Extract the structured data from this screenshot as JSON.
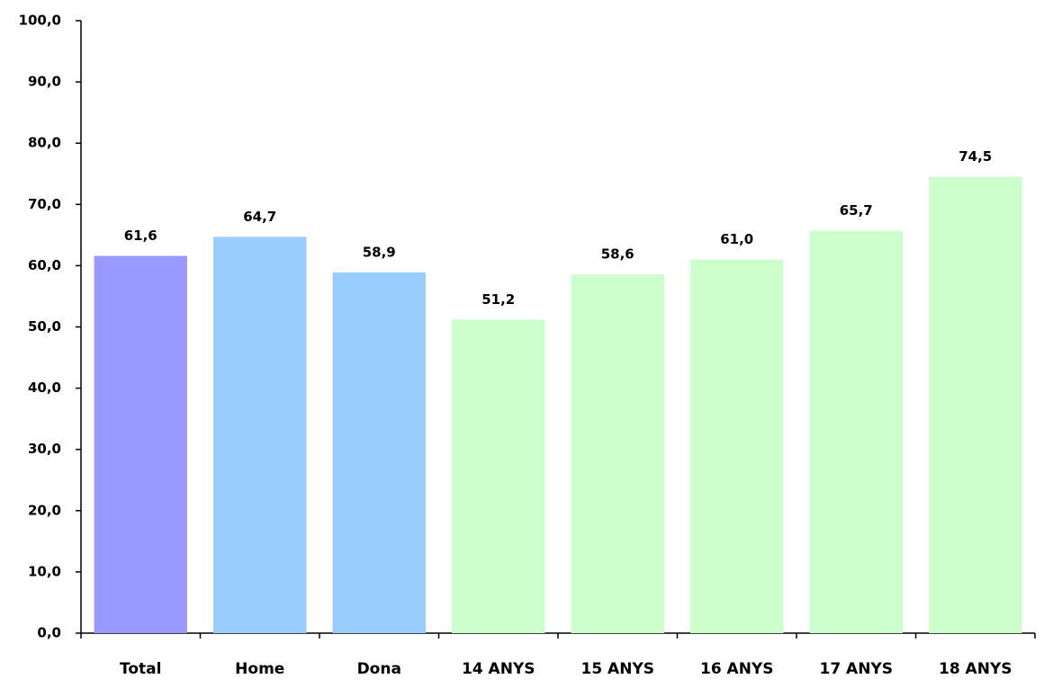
{
  "chart_data": {
    "type": "bar",
    "categories": [
      "Total",
      "Home",
      "Dona",
      "14 ANYS",
      "15 ANYS",
      "16 ANYS",
      "17 ANYS",
      "18 ANYS"
    ],
    "values": [
      61.6,
      64.7,
      58.9,
      51.2,
      58.6,
      61.0,
      65.7,
      74.5
    ],
    "value_labels": [
      "61,6",
      "64,7",
      "58,9",
      "51,2",
      "58,6",
      "61,0",
      "65,7",
      "74,5"
    ],
    "colors": [
      "#9999ff",
      "#99ccff",
      "#99ccff",
      "#ccffcc",
      "#ccffcc",
      "#ccffcc",
      "#ccffcc",
      "#ccffcc"
    ],
    "ylim": [
      0,
      100
    ],
    "yticks": [
      {
        "value": 0,
        "label": "0,0"
      },
      {
        "value": 10,
        "label": "10,0"
      },
      {
        "value": 20,
        "label": "20,0"
      },
      {
        "value": 30,
        "label": "30,0"
      },
      {
        "value": 40,
        "label": "40,0"
      },
      {
        "value": 50,
        "label": "50,0"
      },
      {
        "value": 60,
        "label": "60,0"
      },
      {
        "value": 70,
        "label": "70,0"
      },
      {
        "value": 80,
        "label": "80,0"
      },
      {
        "value": 90,
        "label": "90,0"
      },
      {
        "value": 100,
        "label": "100,0"
      }
    ],
    "grid": false
  }
}
